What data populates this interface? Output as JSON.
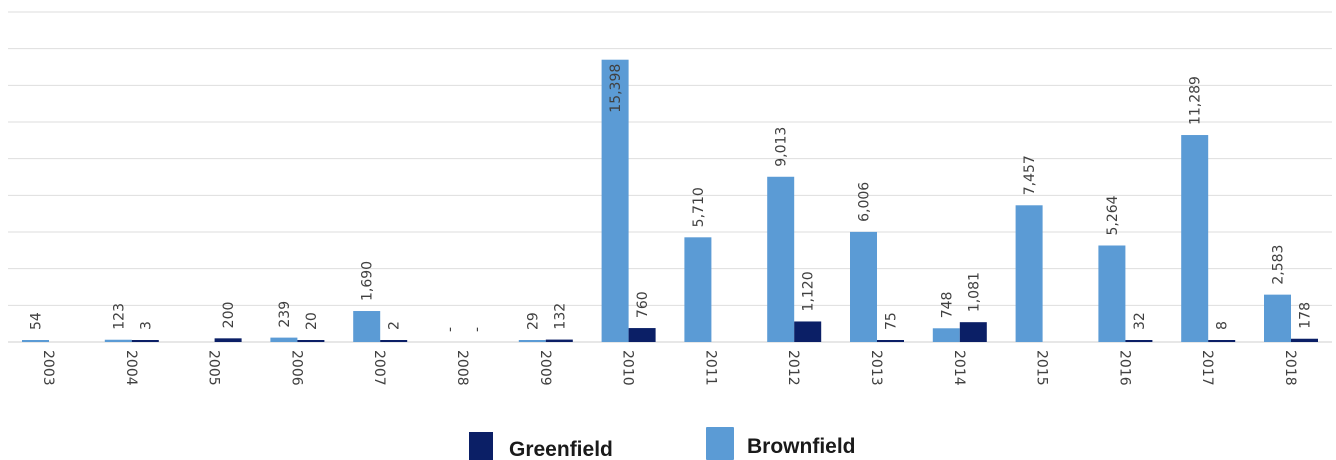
{
  "chart_data": {
    "type": "bar",
    "categories": [
      "2003",
      "2004",
      "2005",
      "2006",
      "2007",
      "2008",
      "2009",
      "2010",
      "2011",
      "2012",
      "2013",
      "2014",
      "2015",
      "2016",
      "2017",
      "2018"
    ],
    "series": [
      {
        "name": "Greenfield",
        "color": "#0b1f66",
        "values": [
          0,
          3,
          200,
          20,
          2,
          0,
          132,
          760,
          0,
          1120,
          75,
          1081,
          0,
          32,
          8,
          178
        ],
        "labels": [
          "",
          "3",
          "200",
          "20",
          "2",
          "-",
          "132",
          "760",
          "",
          "1,120",
          "75",
          "1,081",
          "",
          "32",
          "8",
          "178"
        ]
      },
      {
        "name": "Brownfield",
        "color": "#5b9bd5",
        "values": [
          54,
          123,
          0,
          239,
          1690,
          0,
          29,
          15398,
          5710,
          9013,
          6006,
          748,
          7457,
          5264,
          11289,
          2583
        ],
        "labels": [
          "54",
          "123",
          "",
          "239",
          "1,690",
          "-",
          "29",
          "15,398",
          "5,710",
          "9,013",
          "6,006",
          "748",
          "7,457",
          "5,264",
          "11,289",
          "2,583"
        ]
      }
    ],
    "ylim": [
      0,
      18000
    ],
    "grid": true,
    "legend_position": "bottom",
    "title": "",
    "xlabel": "",
    "ylabel": ""
  }
}
